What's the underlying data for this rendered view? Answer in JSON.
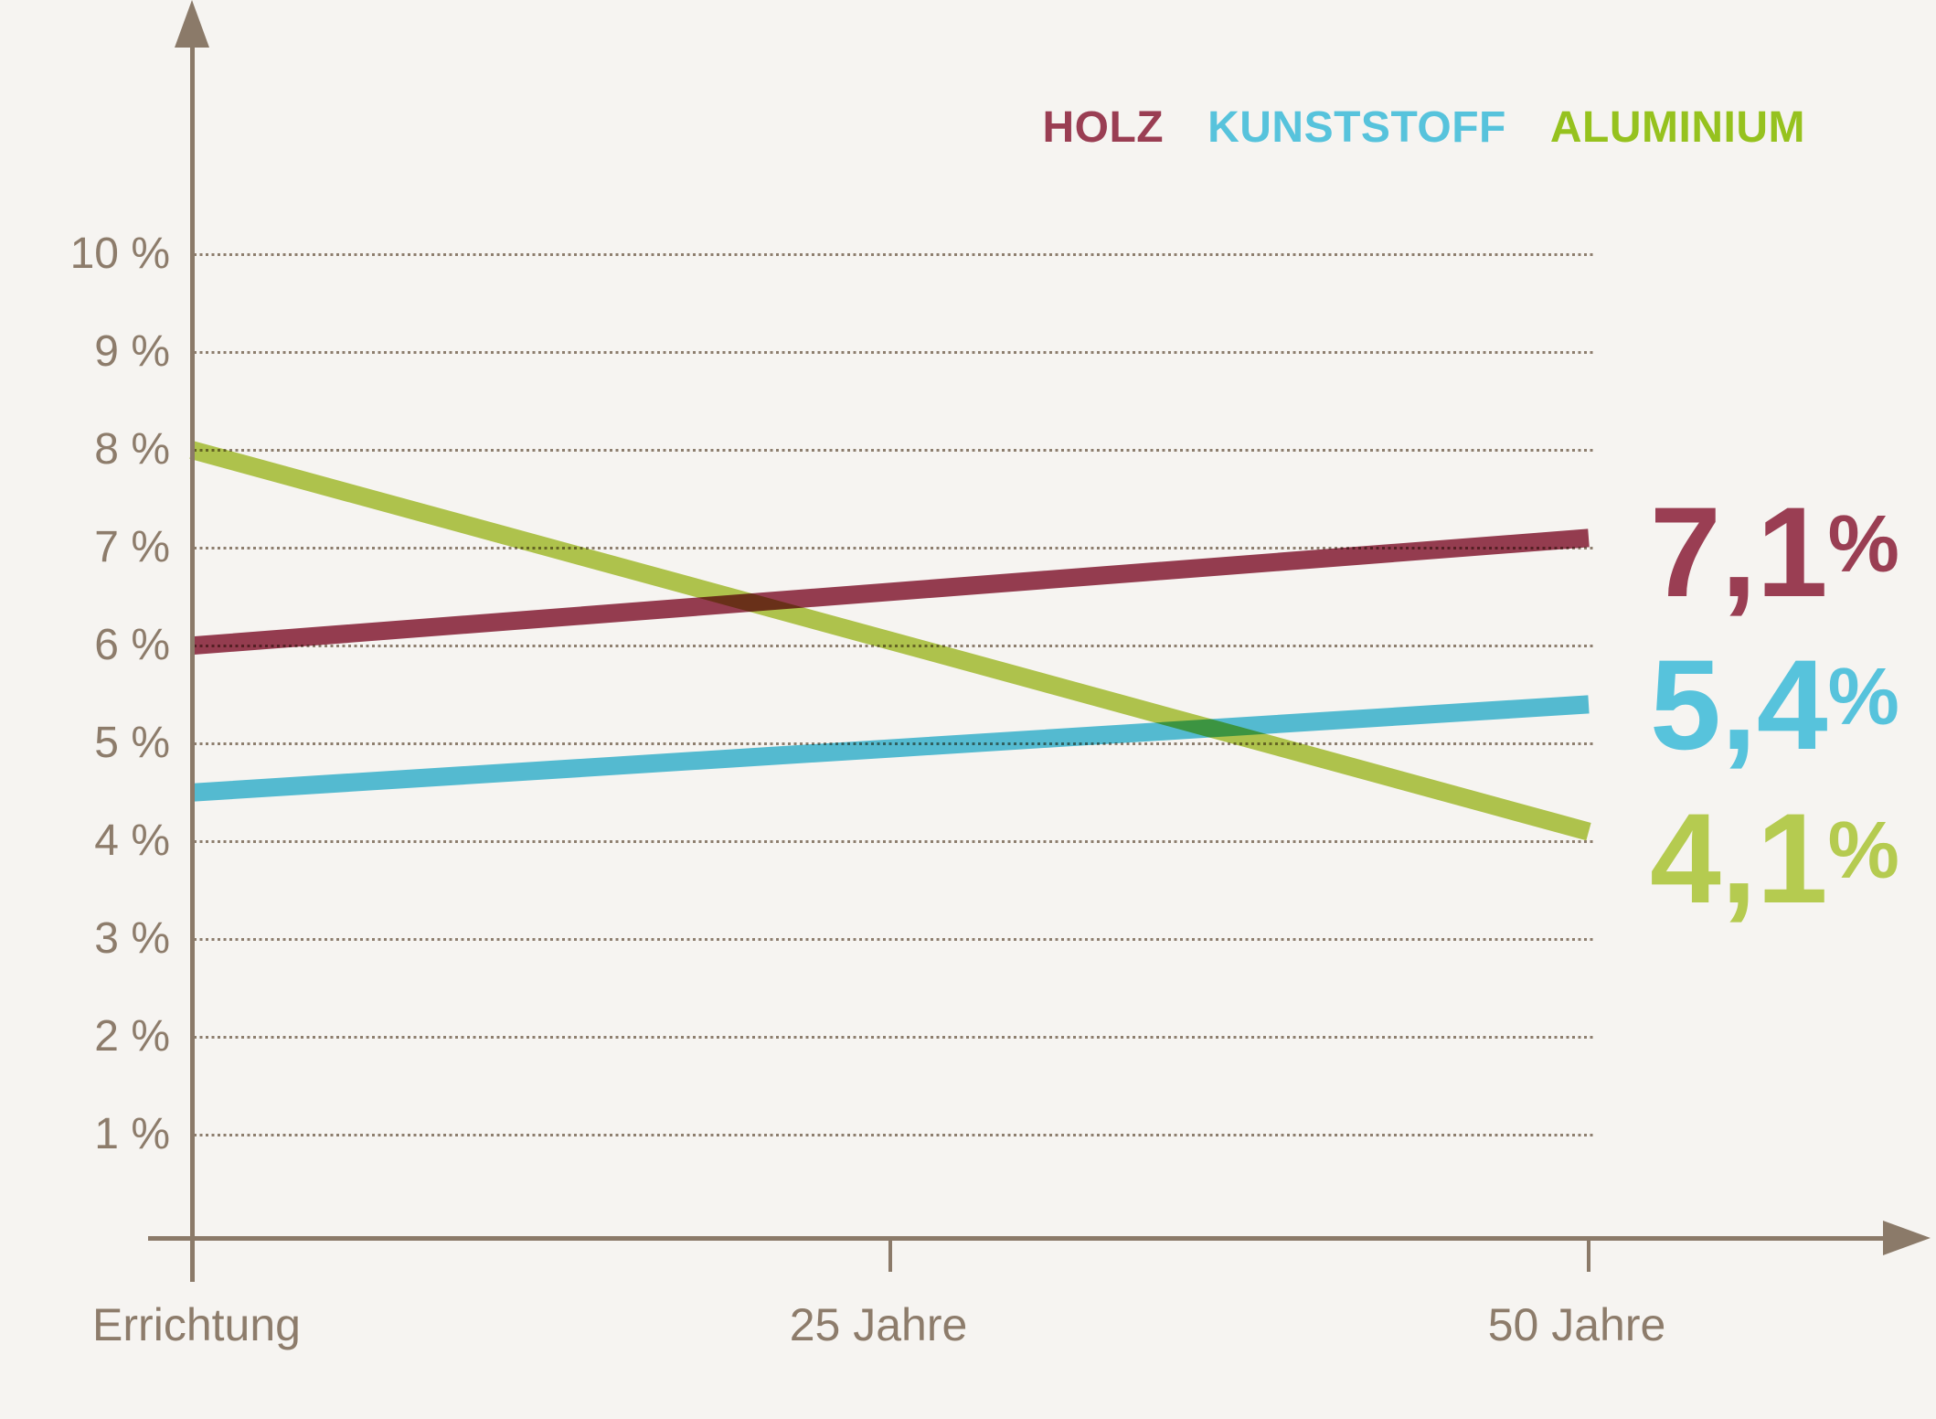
{
  "page": {
    "background": "#f6f4f1",
    "axis_color": "#8b7a69",
    "grid_color": "#8d7e6e",
    "tick_label_color": "#8d7c6b"
  },
  "legend": {
    "position": "top-right",
    "items": [
      {
        "label": "HOLZ",
        "color": "#9a3e53"
      },
      {
        "label": "KUNSTSTOFF",
        "color": "#57c3dc"
      },
      {
        "label": "ALUMINIUM",
        "color": "#96c21e"
      }
    ]
  },
  "chart_data": {
    "type": "line",
    "title": "",
    "categories": [
      "Errichtung",
      "25 Jahre",
      "50 Jahre"
    ],
    "xlabel": "",
    "ylabel": "%",
    "ylim": [
      0,
      10
    ],
    "y_ticks": [
      1,
      2,
      3,
      4,
      5,
      6,
      7,
      8,
      9,
      10
    ],
    "y_tick_labels": [
      "1 %",
      "2 %",
      "3 %",
      "4 %",
      "5 %",
      "6 %",
      "7 %",
      "8 %",
      "9 %",
      "10 %"
    ],
    "grid": "dotted-horizontal",
    "legend_position": "top-right",
    "series": [
      {
        "name": "HOLZ",
        "color": "#9a3e53",
        "values": [
          6.0,
          6.55,
          7.1
        ],
        "end_label": "7,1",
        "end_label_suffix": "%"
      },
      {
        "name": "KUNSTSTOFF",
        "color": "#57c3dc",
        "values": [
          4.5,
          4.95,
          5.4
        ],
        "end_label": "5,4",
        "end_label_suffix": "%"
      },
      {
        "name": "ALUMINIUM",
        "color": "#b5cb50",
        "values": [
          8.0,
          6.05,
          4.1
        ],
        "end_label": "4,1",
        "end_label_suffix": "%"
      }
    ]
  }
}
